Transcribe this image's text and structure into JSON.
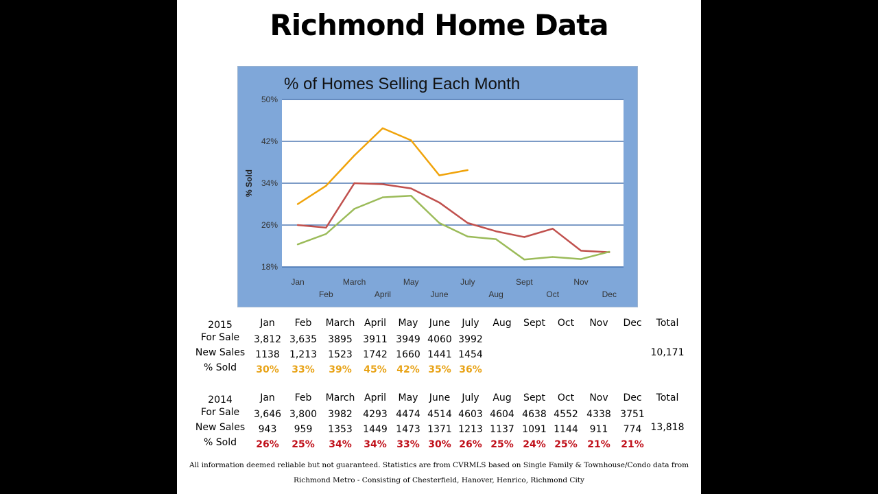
{
  "page": {
    "title": "Richmond Home Data"
  },
  "chart_data": {
    "type": "line",
    "title": "% of Homes Selling Each Month",
    "ylabel": "% Sold",
    "xlabel": "",
    "ylim": [
      18,
      50
    ],
    "yticks": [
      "50%",
      "42%",
      "34%",
      "26%",
      "18%"
    ],
    "ytick_values": [
      50,
      42,
      34,
      26,
      18
    ],
    "categories": [
      "Jan",
      "Feb",
      "March",
      "April",
      "May",
      "June",
      "July",
      "Aug",
      "Sept",
      "Oct",
      "Nov",
      "Dec"
    ],
    "grid": true,
    "series": [
      {
        "key": "y2015",
        "color": "#f0a30a",
        "values": [
          30,
          33.5,
          39.3,
          44.5,
          42.2,
          35.5,
          36.5,
          null,
          null,
          null,
          null,
          null
        ]
      },
      {
        "key": "y2014",
        "color": "#c0504d",
        "values": [
          26,
          25.5,
          34,
          33.8,
          33.0,
          30.3,
          26.4,
          24.8,
          23.7,
          25.3,
          21.1,
          20.8
        ]
      },
      {
        "key": "ygreen",
        "color": "#9bbb59",
        "values": [
          22.3,
          24.3,
          29.1,
          31.3,
          31.6,
          26.4,
          23.8,
          23.3,
          19.4,
          19.9,
          19.5,
          20.9
        ]
      }
    ]
  },
  "table": {
    "months": [
      "Jan",
      "Feb",
      "March",
      "April",
      "May",
      "June",
      "July",
      "Aug",
      "Sept",
      "Oct",
      "Nov",
      "Dec"
    ],
    "total_label": "Total",
    "row_labels": {
      "for_sale": "For Sale",
      "new_sales": "New Sales",
      "pct_sold": "% Sold"
    },
    "y2015": {
      "year": "2015",
      "for_sale": [
        "3,812",
        "3,635",
        "3895",
        "3911",
        "3949",
        "4060",
        "3992",
        "",
        "",
        "",
        "",
        ""
      ],
      "new_sales": [
        "1138",
        "1,213",
        "1523",
        "1742",
        "1660",
        "1441",
        "1454",
        "",
        "",
        "",
        "",
        ""
      ],
      "pct_sold": [
        "30%",
        "33%",
        "39%",
        "45%",
        "42%",
        "35%",
        "36%",
        "",
        "",
        "",
        "",
        ""
      ],
      "total": "10,171"
    },
    "y2014": {
      "year": "2014",
      "for_sale": [
        "3,646",
        "3,800",
        "3982",
        "4293",
        "4474",
        "4514",
        "4603",
        "4604",
        "4638",
        "4552",
        "4338",
        "3751"
      ],
      "new_sales": [
        "943",
        "959",
        "1353",
        "1449",
        "1473",
        "1371",
        "1213",
        "1137",
        "1091",
        "1144",
        "911",
        "774"
      ],
      "pct_sold": [
        "26%",
        "25%",
        "34%",
        "34%",
        "33%",
        "30%",
        "26%",
        "25%",
        "24%",
        "25%",
        "21%",
        "21%"
      ],
      "total": "13,818"
    }
  },
  "footnote": {
    "line1": "All information deemed reliable but not guaranteed. Statistics are from CVRMLS based on Single Family & Townhouse/Condo data from",
    "line2": "Richmond Metro - Consisting of Chesterfield, Hanover, Henrico, Richmond City"
  },
  "colors": {
    "chart_frame": "#7fa7d9",
    "grid": "#2e5fa3",
    "pct_2015": "#e8a317",
    "pct_2014": "#c0101a"
  }
}
